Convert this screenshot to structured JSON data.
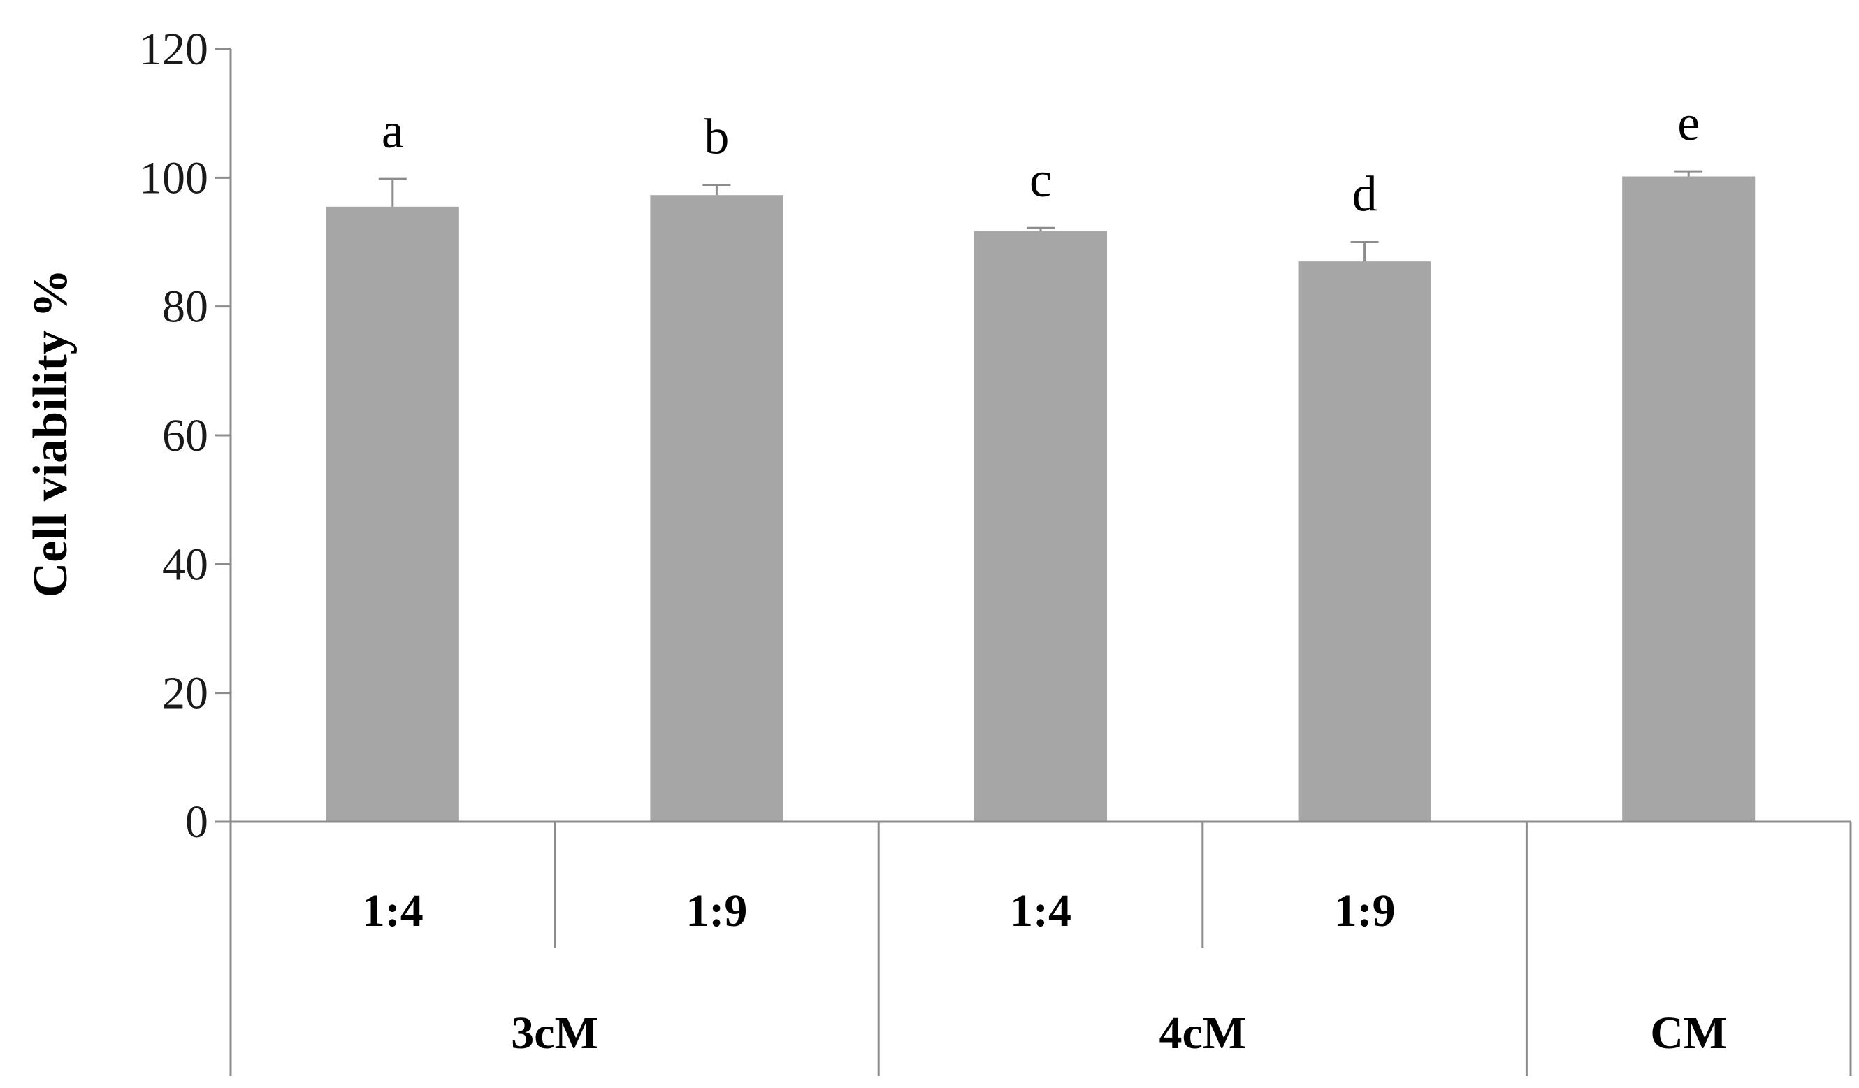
{
  "chart_data": {
    "type": "bar",
    "ylabel": "Cell viability %",
    "xlabel": "",
    "ylim": [
      0,
      120
    ],
    "yticks": [
      0,
      20,
      40,
      60,
      80,
      100,
      120
    ],
    "grid": false,
    "bar_color": "#a6a6a6",
    "groups": [
      {
        "label": "3cM",
        "categories": [
          "1:4",
          "1:9"
        ]
      },
      {
        "label": "4cM",
        "categories": [
          "1:4",
          "1:9"
        ]
      },
      {
        "label": "CM",
        "categories": [
          ""
        ]
      }
    ],
    "values": [
      95.5,
      97.3,
      91.7,
      87.0,
      100.2
    ],
    "errors": [
      4.3,
      1.6,
      0.5,
      3.0,
      0.8
    ],
    "significance_labels": [
      "a",
      "b",
      "c",
      "d",
      "e"
    ]
  }
}
